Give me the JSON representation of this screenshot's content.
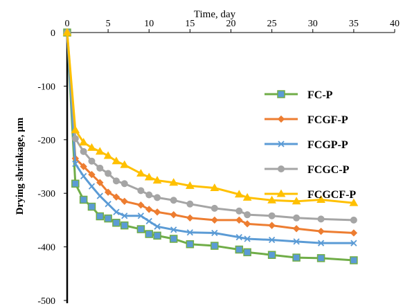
{
  "chart_data": {
    "type": "line",
    "xlabel": "Time, day",
    "ylabel": "Drying shrinkage, μm",
    "xlim": [
      0,
      40
    ],
    "ylim": [
      -500,
      0
    ],
    "xticks": [
      "0",
      "5",
      "10",
      "15",
      "20",
      "25",
      "30",
      "35",
      "40"
    ],
    "yticks": [
      "0",
      "-100",
      "-200",
      "-300",
      "-400",
      "-500"
    ],
    "legend_position": "right",
    "x": [
      0,
      1,
      2,
      3,
      4,
      5,
      6,
      7,
      9,
      10,
      11,
      13,
      15,
      18,
      21,
      22,
      25,
      28,
      31,
      35
    ],
    "series": [
      {
        "name": "FC-P",
        "color": "#70ad47",
        "marker": "square",
        "values": [
          0,
          -282,
          -312,
          -325,
          -343,
          -347,
          -355,
          -360,
          -367,
          -376,
          -379,
          -385,
          -395,
          -398,
          -405,
          -410,
          -415,
          -420,
          -421,
          -425
        ]
      },
      {
        "name": "FCGF-P",
        "color": "#ed7d31",
        "marker": "diamond",
        "values": [
          0,
          -235,
          -250,
          -265,
          -280,
          -298,
          -307,
          -315,
          -322,
          -330,
          -335,
          -340,
          -346,
          -350,
          -350,
          -357,
          -360,
          -366,
          -371,
          -374
        ]
      },
      {
        "name": "FCGP-P",
        "color": "#5b9bd5",
        "marker": "x",
        "values": [
          0,
          -245,
          -268,
          -287,
          -305,
          -320,
          -335,
          -342,
          -342,
          -352,
          -362,
          -368,
          -373,
          -374,
          -382,
          -385,
          -387,
          -390,
          -393,
          -393
        ]
      },
      {
        "name": "FCGC-P",
        "color": "#a5a5a5",
        "marker": "circle",
        "values": [
          0,
          -198,
          -222,
          -240,
          -253,
          -263,
          -277,
          -282,
          -295,
          -303,
          -308,
          -313,
          -320,
          -328,
          -333,
          -340,
          -342,
          -346,
          -348,
          -350
        ]
      },
      {
        "name": "FCGCF-P",
        "color": "#ffc000",
        "marker": "triangle",
        "values": [
          0,
          -182,
          -205,
          -215,
          -222,
          -230,
          -240,
          -247,
          -263,
          -270,
          -276,
          -280,
          -286,
          -290,
          -302,
          -308,
          -313,
          -315,
          -312,
          -318
        ]
      }
    ]
  }
}
